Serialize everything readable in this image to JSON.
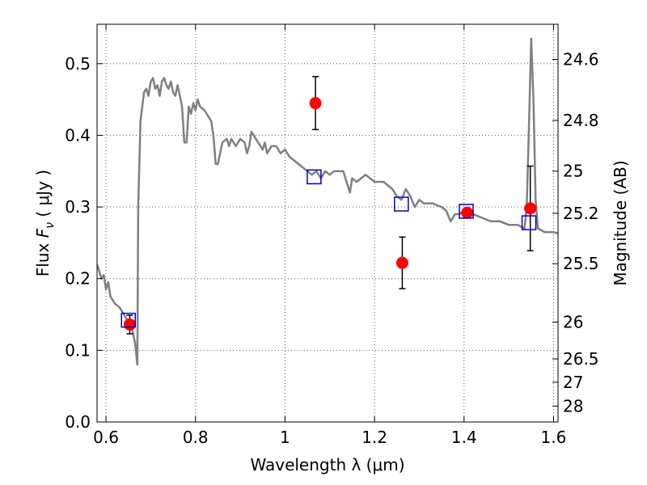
{
  "chart_data": {
    "type": "scatter",
    "xlabel": "Wavelength  λ (μm)",
    "ylabel_left": {
      "prefix": "Flux  ",
      "symbol": "F",
      "subscript": "ν",
      "unit": "  ( μJy )"
    },
    "ylabel_right": "Magnitude (AB)",
    "xlim": [
      0.58,
      1.61
    ],
    "ylim": [
      0.0,
      0.555
    ],
    "grid": true,
    "x_ticks": [
      0.6,
      0.8,
      1.0,
      1.2,
      1.4,
      1.6
    ],
    "x_tick_labels": [
      "0.6",
      "0.8",
      "1",
      "1.2",
      "1.4",
      "1.6"
    ],
    "y_ticks": [
      0.0,
      0.1,
      0.2,
      0.3,
      0.4,
      0.5
    ],
    "y_tick_labels": [
      "0.0",
      "0.1",
      "0.2",
      "0.3",
      "0.4",
      "0.5"
    ],
    "right_ticks": [
      {
        "label": "24.6",
        "mag": 24.6
      },
      {
        "label": "24.8",
        "mag": 24.8
      },
      {
        "label": "25",
        "mag": 25.0
      },
      {
        "label": "25.2",
        "mag": 25.2
      },
      {
        "label": "25.5",
        "mag": 25.5
      },
      {
        "label": "26",
        "mag": 26.0
      },
      {
        "label": "26.5",
        "mag": 26.5
      },
      {
        "label": "27",
        "mag": 27.0
      },
      {
        "label": "28",
        "mag": 28.0
      }
    ],
    "series": [
      {
        "kind": "line",
        "color": "#808080",
        "points": [
          [
            0.58,
            0.22
          ],
          [
            0.585,
            0.21
          ],
          [
            0.59,
            0.2
          ],
          [
            0.595,
            0.205
          ],
          [
            0.6,
            0.185
          ],
          [
            0.605,
            0.195
          ],
          [
            0.61,
            0.175
          ],
          [
            0.62,
            0.165
          ],
          [
            0.63,
            0.16
          ],
          [
            0.64,
            0.15
          ],
          [
            0.65,
            0.14
          ],
          [
            0.66,
            0.125
          ],
          [
            0.665,
            0.11
          ],
          [
            0.67,
            0.08
          ],
          [
            0.672,
            0.3
          ],
          [
            0.677,
            0.42
          ],
          [
            0.685,
            0.46
          ],
          [
            0.69,
            0.465
          ],
          [
            0.695,
            0.455
          ],
          [
            0.7,
            0.475
          ],
          [
            0.705,
            0.48
          ],
          [
            0.71,
            0.465
          ],
          [
            0.715,
            0.47
          ],
          [
            0.72,
            0.455
          ],
          [
            0.725,
            0.475
          ],
          [
            0.73,
            0.48
          ],
          [
            0.735,
            0.47
          ],
          [
            0.74,
            0.465
          ],
          [
            0.745,
            0.475
          ],
          [
            0.75,
            0.46
          ],
          [
            0.755,
            0.455
          ],
          [
            0.76,
            0.47
          ],
          [
            0.765,
            0.455
          ],
          [
            0.77,
            0.44
          ],
          [
            0.775,
            0.39
          ],
          [
            0.78,
            0.39
          ],
          [
            0.785,
            0.44
          ],
          [
            0.79,
            0.43
          ],
          [
            0.795,
            0.445
          ],
          [
            0.8,
            0.435
          ],
          [
            0.805,
            0.45
          ],
          [
            0.81,
            0.44
          ],
          [
            0.82,
            0.435
          ],
          [
            0.83,
            0.425
          ],
          [
            0.835,
            0.42
          ],
          [
            0.84,
            0.4
          ],
          [
            0.845,
            0.36
          ],
          [
            0.85,
            0.36
          ],
          [
            0.86,
            0.39
          ],
          [
            0.87,
            0.395
          ],
          [
            0.875,
            0.385
          ],
          [
            0.88,
            0.395
          ],
          [
            0.885,
            0.39
          ],
          [
            0.89,
            0.385
          ],
          [
            0.9,
            0.395
          ],
          [
            0.91,
            0.39
          ],
          [
            0.915,
            0.375
          ],
          [
            0.92,
            0.385
          ],
          [
            0.925,
            0.405
          ],
          [
            0.93,
            0.4
          ],
          [
            0.94,
            0.39
          ],
          [
            0.95,
            0.38
          ],
          [
            0.955,
            0.39
          ],
          [
            0.96,
            0.375
          ],
          [
            0.97,
            0.385
          ],
          [
            0.98,
            0.385
          ],
          [
            0.99,
            0.375
          ],
          [
            1.0,
            0.38
          ],
          [
            1.01,
            0.37
          ],
          [
            1.02,
            0.365
          ],
          [
            1.03,
            0.36
          ],
          [
            1.04,
            0.355
          ],
          [
            1.05,
            0.35
          ],
          [
            1.06,
            0.345
          ],
          [
            1.07,
            0.35
          ],
          [
            1.08,
            0.34
          ],
          [
            1.09,
            0.35
          ],
          [
            1.1,
            0.345
          ],
          [
            1.11,
            0.35
          ],
          [
            1.12,
            0.35
          ],
          [
            1.13,
            0.35
          ],
          [
            1.14,
            0.33
          ],
          [
            1.145,
            0.32
          ],
          [
            1.15,
            0.34
          ],
          [
            1.16,
            0.335
          ],
          [
            1.17,
            0.34
          ],
          [
            1.18,
            0.345
          ],
          [
            1.19,
            0.34
          ],
          [
            1.2,
            0.335
          ],
          [
            1.22,
            0.335
          ],
          [
            1.24,
            0.325
          ],
          [
            1.25,
            0.315
          ],
          [
            1.26,
            0.31
          ],
          [
            1.27,
            0.325
          ],
          [
            1.28,
            0.315
          ],
          [
            1.29,
            0.3
          ],
          [
            1.3,
            0.31
          ],
          [
            1.31,
            0.305
          ],
          [
            1.33,
            0.305
          ],
          [
            1.35,
            0.3
          ],
          [
            1.36,
            0.295
          ],
          [
            1.37,
            0.28
          ],
          [
            1.38,
            0.29
          ],
          [
            1.39,
            0.29
          ],
          [
            1.4,
            0.295
          ],
          [
            1.42,
            0.29
          ],
          [
            1.44,
            0.285
          ],
          [
            1.46,
            0.28
          ],
          [
            1.48,
            0.28
          ],
          [
            1.5,
            0.275
          ],
          [
            1.52,
            0.275
          ],
          [
            1.535,
            0.27
          ],
          [
            1.54,
            0.3
          ],
          [
            1.545,
            0.41
          ],
          [
            1.55,
            0.535
          ],
          [
            1.555,
            0.45
          ],
          [
            1.56,
            0.31
          ],
          [
            1.565,
            0.27
          ],
          [
            1.58,
            0.265
          ],
          [
            1.6,
            0.265
          ],
          [
            1.61,
            0.263
          ]
        ]
      },
      {
        "kind": "scatter",
        "marker": "circle",
        "color": "#ff0000",
        "points": [
          {
            "x": 0.653,
            "y": 0.136,
            "err": 0.013
          },
          {
            "x": 1.068,
            "y": 0.445,
            "err": 0.037
          },
          {
            "x": 1.262,
            "y": 0.222,
            "err": 0.036
          },
          {
            "x": 1.407,
            "y": 0.292,
            "err": 0.0
          },
          {
            "x": 1.548,
            "y": 0.298,
            "err": 0.059
          }
        ]
      },
      {
        "kind": "scatter",
        "marker": "square-open",
        "color": "#0000cc",
        "points": [
          {
            "x": 0.65,
            "y": 0.142
          },
          {
            "x": 1.065,
            "y": 0.342
          },
          {
            "x": 1.26,
            "y": 0.304
          },
          {
            "x": 1.405,
            "y": 0.294
          },
          {
            "x": 1.545,
            "y": 0.278
          }
        ]
      }
    ]
  },
  "colors": {
    "model_line": "#808080",
    "observed": "#ff0000",
    "model_photometry": "#0000cc",
    "error_bar": "#000000",
    "grid": "#555555"
  }
}
